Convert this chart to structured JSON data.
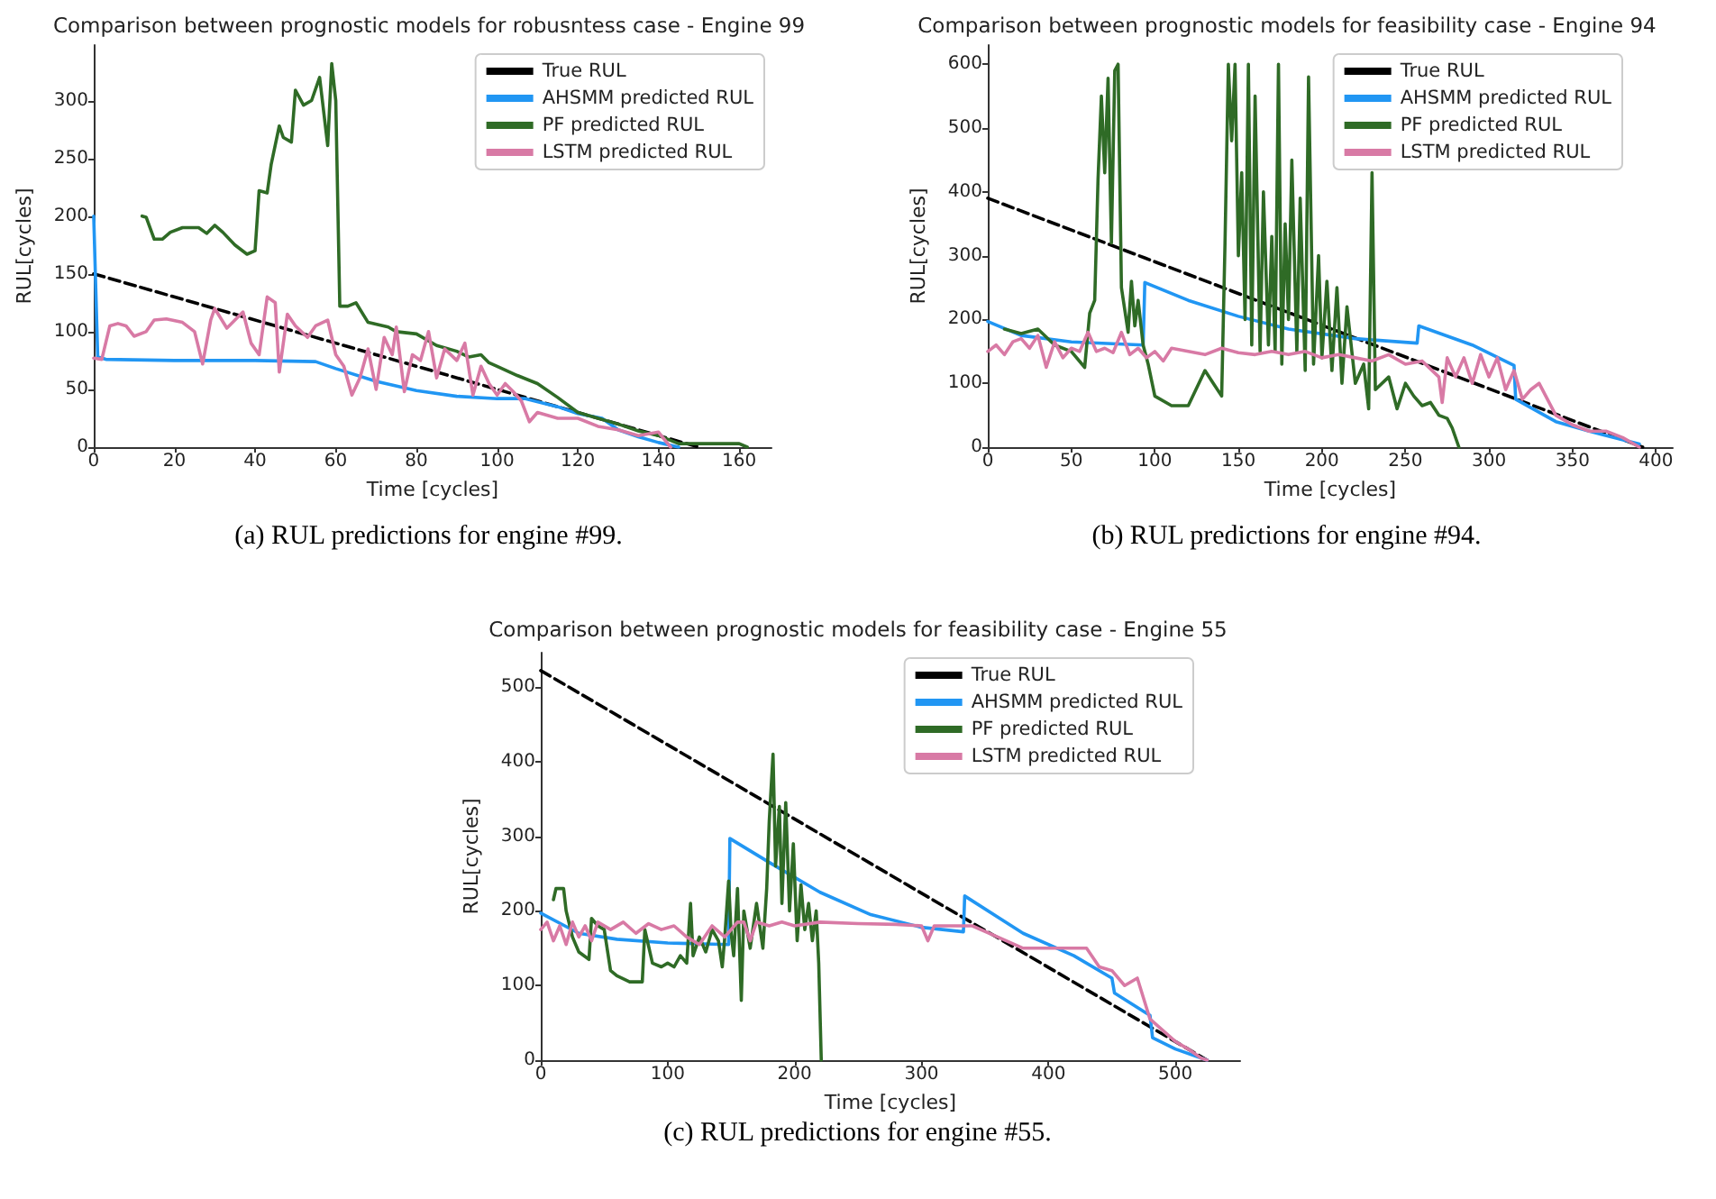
{
  "chart_data": [
    {
      "type": "line",
      "title": "Comparison between prognostic models for robusntess case - Engine 99",
      "xlabel": "Time [cycles]",
      "ylabel": "RUL[cycles]",
      "annotations": [
        "(a) RUL predictions for engine #99."
      ],
      "xlim": [
        0,
        168
      ],
      "ylim": [
        0,
        348
      ],
      "xticks": [
        0,
        20,
        40,
        60,
        80,
        100,
        120,
        140,
        160
      ],
      "yticks": [
        0,
        50,
        100,
        150,
        200,
        250,
        300
      ],
      "grid": false,
      "legend": "top right",
      "marker": "none",
      "series": [
        {
          "name": "True RUL",
          "color": "#000000",
          "line_style": "dashed",
          "x": [
            0,
            150
          ],
          "values": [
            150,
            0
          ]
        },
        {
          "name": "AHSMM predicted RUL",
          "color": "#2196f3",
          "x": [
            0,
            1,
            3,
            20,
            40,
            55,
            60,
            70,
            80,
            90,
            100,
            107,
            115,
            120,
            126,
            130,
            135,
            140,
            145
          ],
          "values": [
            200,
            78,
            76,
            75,
            75,
            74,
            68,
            57,
            49,
            44,
            42,
            42,
            35,
            29,
            25,
            15,
            9,
            4,
            0
          ]
        },
        {
          "name": "PF predicted RUL",
          "color": "#2f6b26",
          "x": [
            12,
            13,
            15,
            17,
            19,
            22,
            26,
            28,
            30,
            32,
            35,
            38,
            40,
            41,
            43,
            44,
            46,
            47,
            49,
            50,
            52,
            54,
            56,
            58,
            59,
            60,
            61,
            63,
            65,
            68,
            73,
            75,
            80,
            85,
            90,
            93,
            96,
            98,
            100,
            105,
            110,
            115,
            120,
            125,
            130,
            135,
            140,
            145,
            150,
            155,
            160,
            162
          ],
          "values": [
            200,
            199,
            180,
            180,
            186,
            190,
            190,
            185,
            192,
            186,
            175,
            167,
            170,
            222,
            220,
            245,
            278,
            268,
            264,
            309,
            296,
            300,
            320,
            261,
            332,
            300,
            122,
            122,
            125,
            108,
            104,
            100,
            98,
            88,
            83,
            78,
            80,
            73,
            70,
            62,
            55,
            43,
            30,
            25,
            20,
            14,
            10,
            3,
            3,
            3,
            3,
            0
          ]
        },
        {
          "name": "LSTM predicted RUL",
          "color": "#d87aa5",
          "x": [
            0,
            2,
            4,
            6,
            8,
            10,
            13,
            15,
            18,
            22,
            25,
            27,
            29,
            30,
            33,
            35,
            37,
            39,
            41,
            43,
            45,
            46,
            48,
            50,
            53,
            55,
            58,
            60,
            62,
            64,
            66,
            68,
            70,
            72,
            74,
            75,
            77,
            79,
            81,
            83,
            85,
            87,
            90,
            92,
            94,
            96,
            98,
            100,
            102,
            104,
            106,
            108,
            110,
            115,
            120,
            125,
            130,
            135,
            140,
            143
          ],
          "values": [
            77,
            76,
            105,
            107,
            105,
            96,
            100,
            110,
            111,
            108,
            100,
            72,
            110,
            120,
            103,
            110,
            117,
            90,
            80,
            130,
            125,
            65,
            115,
            105,
            95,
            105,
            110,
            80,
            70,
            45,
            60,
            85,
            50,
            95,
            80,
            104,
            48,
            80,
            75,
            100,
            60,
            85,
            75,
            90,
            45,
            70,
            55,
            45,
            55,
            48,
            40,
            22,
            30,
            25,
            25,
            18,
            15,
            10,
            13,
            0
          ]
        }
      ]
    },
    {
      "type": "line",
      "title": "Comparison between prognostic models for feasibility case - Engine 94",
      "xlabel": "Time [cycles]",
      "ylabel": "RUL[cycles]",
      "annotations": [
        "(b) RUL predictions for engine #94."
      ],
      "xlim": [
        0,
        410
      ],
      "ylim": [
        0,
        630
      ],
      "xticks": [
        0,
        50,
        100,
        150,
        200,
        250,
        300,
        350,
        400
      ],
      "yticks": [
        0,
        100,
        200,
        300,
        400,
        500,
        600
      ],
      "grid": false,
      "legend": "top right",
      "marker": "none",
      "series": [
        {
          "name": "True RUL",
          "color": "#000000",
          "line_style": "dashed",
          "x": [
            0,
            392
          ],
          "values": [
            390,
            0
          ]
        },
        {
          "name": "AHSMM predicted RUL",
          "color": "#2196f3",
          "x": [
            0,
            20,
            50,
            93,
            94,
            120,
            150,
            180,
            220,
            257,
            258,
            290,
            315,
            316,
            340,
            360,
            390
          ],
          "values": [
            197,
            175,
            165,
            160,
            258,
            230,
            205,
            185,
            170,
            163,
            190,
            160,
            128,
            75,
            40,
            25,
            5
          ]
        },
        {
          "name": "PF predicted RUL",
          "color": "#2f6b26",
          "x": [
            10,
            20,
            30,
            40,
            50,
            58,
            61,
            64,
            66,
            68,
            70,
            72,
            74,
            76,
            78,
            80,
            84,
            86,
            88,
            90,
            93,
            96,
            100,
            110,
            120,
            130,
            135,
            140,
            142,
            144,
            146,
            148,
            150,
            152,
            154,
            156,
            158,
            160,
            163,
            165,
            168,
            170,
            172,
            174,
            176,
            178,
            180,
            182,
            185,
            187,
            190,
            192,
            195,
            198,
            200,
            203,
            206,
            209,
            212,
            215,
            220,
            225,
            228,
            230,
            232,
            240,
            245,
            250,
            255,
            260,
            265,
            270,
            275,
            278,
            282
          ],
          "values": [
            185,
            178,
            185,
            160,
            150,
            125,
            210,
            230,
            420,
            550,
            430,
            578,
            320,
            590,
            600,
            250,
            180,
            260,
            190,
            230,
            160,
            130,
            80,
            65,
            65,
            120,
            100,
            80,
            320,
            600,
            480,
            600,
            300,
            430,
            200,
            600,
            160,
            550,
            150,
            400,
            160,
            330,
            150,
            600,
            130,
            350,
            200,
            450,
            150,
            390,
            120,
            580,
            130,
            300,
            140,
            260,
            120,
            250,
            100,
            220,
            100,
            130,
            60,
            430,
            90,
            110,
            60,
            100,
            80,
            65,
            70,
            50,
            45,
            30,
            0
          ]
        },
        {
          "name": "LSTM predicted RUL",
          "color": "#d87aa5",
          "x": [
            0,
            5,
            10,
            15,
            20,
            25,
            30,
            35,
            40,
            45,
            50,
            55,
            60,
            65,
            70,
            75,
            80,
            85,
            90,
            95,
            100,
            105,
            110,
            120,
            130,
            140,
            150,
            160,
            170,
            180,
            190,
            200,
            210,
            220,
            230,
            240,
            250,
            260,
            270,
            272,
            275,
            280,
            285,
            290,
            295,
            300,
            305,
            310,
            315,
            320,
            325,
            330,
            340,
            350,
            360,
            370,
            380,
            390
          ],
          "values": [
            150,
            160,
            145,
            165,
            170,
            155,
            175,
            125,
            165,
            140,
            155,
            150,
            180,
            150,
            155,
            148,
            180,
            145,
            155,
            140,
            150,
            135,
            155,
            150,
            145,
            155,
            148,
            145,
            150,
            145,
            150,
            140,
            145,
            140,
            135,
            145,
            130,
            135,
            110,
            70,
            140,
            110,
            140,
            100,
            145,
            110,
            140,
            90,
            120,
            75,
            90,
            100,
            50,
            35,
            25,
            25,
            15,
            0
          ]
        }
      ]
    },
    {
      "type": "line",
      "title": "Comparison between prognostic models for feasibility case - Engine 55",
      "xlabel": "Time [cycles]",
      "ylabel": "RUL[cycles]",
      "annotations": [
        "(c) RUL predictions for engine #55."
      ],
      "xlim": [
        0,
        551
      ],
      "ylim": [
        0,
        546
      ],
      "xticks": [
        0,
        100,
        200,
        300,
        400,
        500
      ],
      "yticks": [
        0,
        100,
        200,
        300,
        400,
        500
      ],
      "grid": false,
      "legend": "top right",
      "marker": "none",
      "series": [
        {
          "name": "True RUL",
          "color": "#000000",
          "line_style": "dashed",
          "x": [
            0,
            525
          ],
          "values": [
            522,
            0
          ]
        },
        {
          "name": "AHSMM predicted RUL",
          "color": "#2196f3",
          "x": [
            0,
            30,
            60,
            100,
            148,
            149,
            180,
            220,
            260,
            300,
            333,
            334,
            380,
            420,
            450,
            452,
            480,
            482,
            500,
            520,
            525
          ],
          "values": [
            197,
            170,
            162,
            157,
            155,
            297,
            265,
            225,
            195,
            178,
            172,
            220,
            170,
            140,
            110,
            90,
            60,
            30,
            15,
            3,
            0
          ]
        },
        {
          "name": "PF predicted RUL",
          "color": "#2f6b26",
          "x": [
            10,
            12,
            18,
            20,
            25,
            30,
            38,
            40,
            45,
            50,
            55,
            60,
            70,
            80,
            82,
            88,
            95,
            100,
            105,
            110,
            115,
            118,
            120,
            125,
            130,
            135,
            140,
            143,
            145,
            148,
            150,
            152,
            155,
            158,
            160,
            165,
            170,
            175,
            178,
            180,
            183,
            185,
            188,
            190,
            193,
            196,
            199,
            202,
            205,
            208,
            211,
            214,
            217,
            219,
            221
          ],
          "values": [
            215,
            230,
            230,
            200,
            165,
            145,
            135,
            190,
            180,
            175,
            120,
            113,
            105,
            105,
            175,
            130,
            125,
            130,
            125,
            140,
            130,
            210,
            140,
            165,
            145,
            175,
            160,
            125,
            165,
            240,
            170,
            140,
            230,
            80,
            200,
            150,
            210,
            150,
            230,
            320,
            410,
            260,
            340,
            210,
            345,
            200,
            290,
            160,
            235,
            175,
            210,
            160,
            200,
            130,
            0
          ]
        },
        {
          "name": "LSTM predicted RUL",
          "color": "#d87aa5",
          "x": [
            0,
            5,
            10,
            15,
            20,
            25,
            30,
            35,
            40,
            45,
            55,
            65,
            75,
            85,
            95,
            105,
            115,
            125,
            135,
            145,
            155,
            160,
            165,
            170,
            180,
            190,
            200,
            220,
            250,
            280,
            300,
            305,
            310,
            340,
            360,
            380,
            400,
            420,
            430,
            440,
            450,
            460,
            470,
            480,
            490,
            500,
            510,
            520,
            525
          ],
          "values": [
            175,
            185,
            160,
            180,
            155,
            185,
            165,
            180,
            160,
            185,
            175,
            185,
            170,
            183,
            175,
            180,
            165,
            155,
            180,
            165,
            185,
            185,
            160,
            185,
            180,
            185,
            180,
            185,
            183,
            182,
            180,
            160,
            180,
            180,
            165,
            150,
            150,
            150,
            150,
            125,
            120,
            100,
            110,
            55,
            40,
            25,
            15,
            3,
            0
          ]
        }
      ]
    }
  ]
}
